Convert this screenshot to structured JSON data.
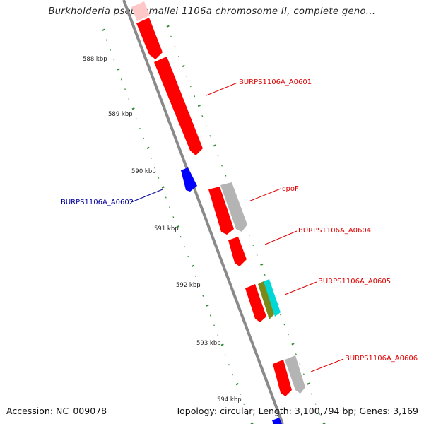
{
  "title": "Burkholderia pseudomallei 1106a chromosome II, complete geno...",
  "footer": {
    "accession": "Accession: NC_009078",
    "summary": "Topology: circular; Length: 3,100,794 bp; Genes: 3,169"
  },
  "colors": {
    "backbone": "#8a8a8a",
    "tick": "#2e8b2e",
    "gene_forward": "#ff0000",
    "gene_reverse": "#0000ff",
    "gene_faded": "#ffc8c8",
    "gene_gray": "#b4b4b4",
    "gene_olive": "#7a8a1a",
    "gene_cyan": "#00d8d8",
    "label_red": "#dd0000",
    "label_blue": "#000099"
  },
  "scale_labels": [
    "588 kbp",
    "589 kbp",
    "590 kbp",
    "591 kbp",
    "592 kbp",
    "593 kbp",
    "594 kbp"
  ],
  "gene_labels": [
    {
      "name": "BURPS1106A_A0601",
      "color": "red"
    },
    {
      "name": "cpoF",
      "color": "red"
    },
    {
      "name": "BURPS1106A_A0602",
      "color": "blue"
    },
    {
      "name": "BURPS1106A_A0604",
      "color": "red"
    },
    {
      "name": "BURPS1106A_A0605",
      "color": "red"
    },
    {
      "name": "BURPS1106A_A0606",
      "color": "red"
    }
  ]
}
